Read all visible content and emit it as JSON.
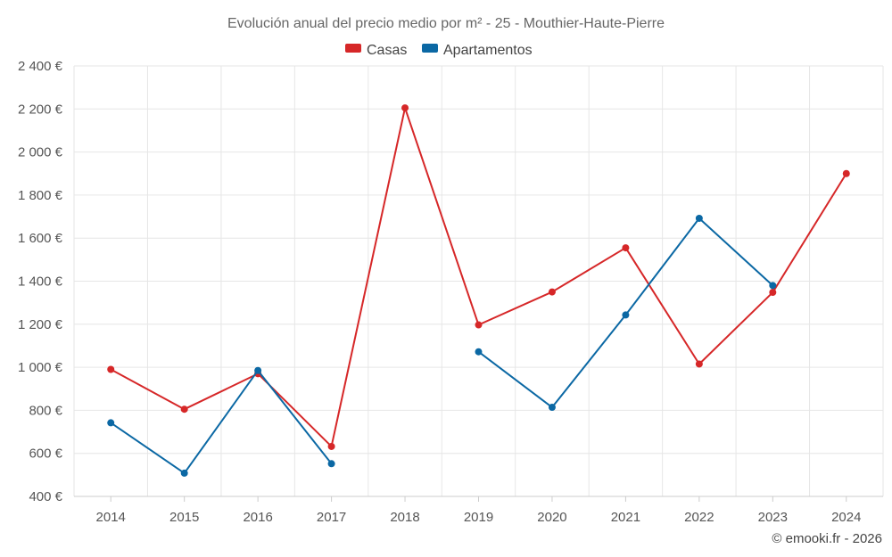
{
  "chart_data": {
    "type": "line",
    "title": "Evolución anual del precio medio por m² - 25 - Mouthier-Haute-Pierre",
    "categories": [
      "2014",
      "2015",
      "2016",
      "2017",
      "2018",
      "2019",
      "2020",
      "2021",
      "2022",
      "2023",
      "2024"
    ],
    "series": [
      {
        "name": "Casas",
        "color": "#d62728",
        "values": [
          990,
          805,
          970,
          632,
          2205,
          1197,
          1350,
          1555,
          1015,
          1348,
          1900
        ]
      },
      {
        "name": "Apartamentos",
        "color": "#0b68a4",
        "values": [
          742,
          508,
          985,
          552,
          null,
          1072,
          814,
          1243,
          1692,
          1380,
          null
        ]
      }
    ],
    "xlabel": "",
    "ylabel": "",
    "ylim": [
      400,
      2400
    ],
    "yticks": [
      400,
      600,
      800,
      1000,
      1200,
      1400,
      1600,
      1800,
      2000,
      2200,
      2400
    ],
    "ytick_labels": [
      "400 €",
      "600 €",
      "800 €",
      "1 000 €",
      "1 200 €",
      "1 400 €",
      "1 600 €",
      "1 800 €",
      "2 000 €",
      "2 200 €",
      "2 400 €"
    ],
    "grid": true,
    "legend_position": "top-center",
    "credit": "© emooki.fr - 2026"
  }
}
